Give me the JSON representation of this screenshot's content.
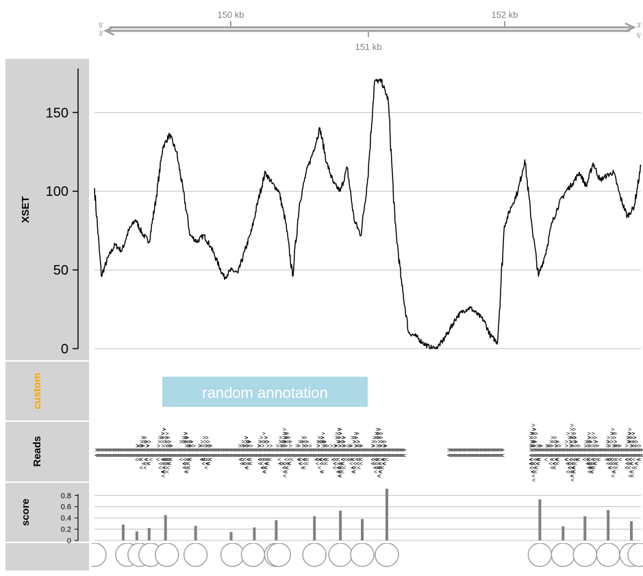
{
  "axis_track": {
    "labels": [
      "150 kb",
      "152 kb",
      "151 kb"
    ],
    "strand_top": [
      "5'",
      "3'"
    ],
    "strand_bottom": [
      "3'",
      "5'"
    ],
    "color": "#9e9e9e"
  },
  "tracks": {
    "data_track": {
      "title": "XSET",
      "yticks": [
        "0",
        "50",
        "100",
        "150"
      ],
      "ylim": [
        0,
        178
      ]
    },
    "annotation_track": {
      "title": "custom",
      "title_color": "#ffa500",
      "feature_label": "random annotation",
      "feature_color": "#add8e6"
    },
    "reads_track": {
      "title": "Reads",
      "fwd_glyph": ">",
      "rev_glyph": "<"
    },
    "score_track": {
      "title": "score",
      "yticks": [
        "0",
        "0.2",
        "0.4",
        "0.6",
        "0.8"
      ],
      "ylim": [
        0,
        0.95
      ]
    },
    "circle_track": {
      "title": ""
    }
  },
  "colors": {
    "panel": "#d3d3d3",
    "grid": "#bebebe",
    "bar": "#808080",
    "line": "#000000"
  },
  "chart_data": [
    {
      "type": "line",
      "title": "XSET",
      "x_unit": "kb",
      "xlim": [
        149.0,
        153.0
      ],
      "ylim": [
        0,
        178
      ],
      "yticks": [
        0,
        50,
        100,
        150
      ],
      "grid": true,
      "x": [
        149.0,
        149.05,
        149.1,
        149.15,
        149.2,
        149.25,
        149.3,
        149.35,
        149.4,
        149.45,
        149.5,
        149.55,
        149.6,
        149.65,
        149.7,
        149.75,
        149.8,
        149.85,
        149.9,
        149.95,
        150.0,
        150.05,
        150.1,
        150.15,
        150.2,
        150.25,
        150.3,
        150.35,
        150.4,
        150.45,
        150.5,
        150.55,
        150.6,
        150.65,
        150.7,
        150.75,
        150.8,
        150.85,
        150.9,
        150.95,
        151.0,
        151.05,
        151.1,
        151.15,
        151.2,
        151.25,
        151.3,
        151.35,
        151.4,
        151.45,
        151.5,
        151.55,
        151.6,
        151.65,
        151.7,
        151.75,
        151.8,
        151.85,
        151.9,
        151.95,
        152.0,
        152.05,
        152.1,
        152.15,
        152.2,
        152.25,
        152.3,
        152.35,
        152.4,
        152.45,
        152.5,
        152.55,
        152.6,
        152.65,
        152.7,
        152.75,
        152.8,
        152.85,
        152.9,
        152.95,
        153.0
      ],
      "y": [
        102,
        46,
        58,
        66,
        62,
        75,
        82,
        73,
        68,
        95,
        128,
        136,
        125,
        100,
        72,
        68,
        72,
        65,
        55,
        45,
        50,
        48,
        62,
        75,
        95,
        112,
        105,
        100,
        80,
        46,
        92,
        112,
        125,
        140,
        118,
        105,
        100,
        115,
        82,
        72,
        108,
        170,
        170,
        158,
        80,
        40,
        10,
        8,
        4,
        1,
        0,
        5,
        12,
        20,
        24,
        26,
        22,
        18,
        8,
        4,
        78,
        90,
        100,
        120,
        80,
        46,
        60,
        80,
        92,
        100,
        105,
        112,
        103,
        118,
        107,
        110,
        112,
        96,
        84,
        90,
        116
      ],
      "series": [
        {
          "name": "XSET"
        }
      ]
    },
    {
      "type": "bar",
      "title": "score",
      "x_unit": "kb",
      "xlim": [
        149.0,
        153.0
      ],
      "ylim": [
        0,
        0.95
      ],
      "yticks": [
        0,
        0.2,
        0.4,
        0.6,
        0.8
      ],
      "grid": true,
      "x": [
        149.21,
        149.31,
        149.4,
        149.52,
        149.74,
        150.0,
        150.17,
        150.33,
        150.61,
        150.8,
        150.96,
        151.14,
        152.26,
        152.43,
        152.59,
        152.76,
        152.93
      ],
      "values": [
        0.28,
        0.16,
        0.22,
        0.45,
        0.26,
        0.15,
        0.23,
        0.36,
        0.43,
        0.53,
        0.38,
        0.92,
        0.73,
        0.25,
        0.43,
        0.54,
        0.34
      ],
      "series": [
        {
          "name": "score"
        }
      ]
    },
    {
      "type": "scatter",
      "title": "",
      "x_unit": "kb",
      "xlim": [
        149.0,
        153.0
      ],
      "x": [
        149.0,
        149.24,
        149.33,
        149.41,
        149.53,
        149.74,
        150.01,
        150.16,
        150.33,
        150.35,
        150.61,
        150.8,
        150.96,
        151.14,
        152.26,
        152.43,
        152.59,
        152.76,
        152.93,
        152.99
      ]
    },
    {
      "type": "scatter",
      "title": "Reads",
      "x_unit": "kb",
      "xlim": [
        149.0,
        153.0
      ],
      "reads_extents": [
        [
          149.0,
          151.26
        ],
        [
          151.58,
          151.98
        ],
        [
          152.18,
          153.0
        ]
      ],
      "coverage_hot_spots": [
        [
          149.35,
          0.6
        ],
        [
          149.5,
          0.9
        ],
        [
          149.66,
          0.75
        ],
        [
          149.8,
          0.5
        ],
        [
          150.1,
          0.55
        ],
        [
          150.23,
          0.65
        ],
        [
          150.38,
          0.85
        ],
        [
          150.52,
          0.55
        ],
        [
          150.65,
          0.8
        ],
        [
          150.78,
          0.9
        ],
        [
          150.9,
          0.8
        ],
        [
          151.07,
          1.0
        ],
        [
          152.2,
          1.0
        ],
        [
          152.35,
          0.6
        ],
        [
          152.48,
          1.0
        ],
        [
          152.62,
          0.8
        ],
        [
          152.78,
          0.8
        ],
        [
          152.92,
          0.9
        ]
      ]
    }
  ]
}
